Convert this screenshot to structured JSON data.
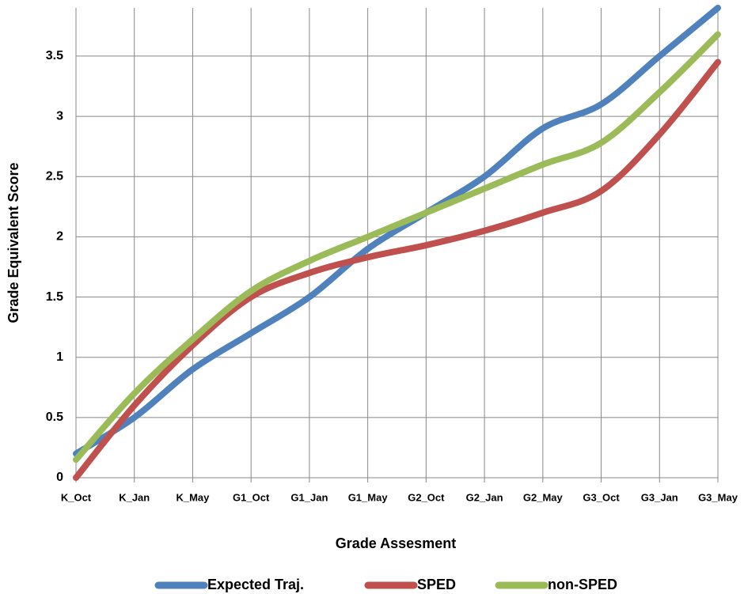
{
  "chart_data": {
    "type": "line",
    "x_label": "Grade Assesment",
    "y_label": "Grade Equivalent Score",
    "categories": [
      "K_Oct",
      "K_Jan",
      "K_May",
      "G1_Oct",
      "G1_Jan",
      "G1_May",
      "G2_Oct",
      "G2_Jan",
      "G2_May",
      "G3_Oct",
      "G3_Jan",
      "G3_May"
    ],
    "series": [
      {
        "name": "Expected Traj.",
        "color": "#4f81bd",
        "values": [
          0.2,
          0.5,
          0.9,
          1.2,
          1.5,
          1.9,
          2.2,
          2.5,
          2.9,
          3.1,
          3.5,
          3.9
        ]
      },
      {
        "name": "SPED",
        "color": "#c0504d",
        "values": [
          0,
          0.6,
          1.1,
          1.5,
          1.7,
          1.83,
          1.93,
          2.05,
          2.2,
          2.38,
          2.85,
          3.45
        ]
      },
      {
        "name": "non-SPED",
        "color": "#9bbb59",
        "values": [
          0.15,
          0.7,
          1.15,
          1.55,
          1.8,
          2.0,
          2.2,
          2.4,
          2.6,
          2.78,
          3.2,
          3.68
        ]
      }
    ],
    "ylim": [
      0,
      3.9
    ],
    "yticks": [
      0,
      0.5,
      1,
      1.5,
      2,
      2.5,
      3,
      3.5
    ],
    "grid": true,
    "legend": "bottom",
    "smooth": true
  }
}
